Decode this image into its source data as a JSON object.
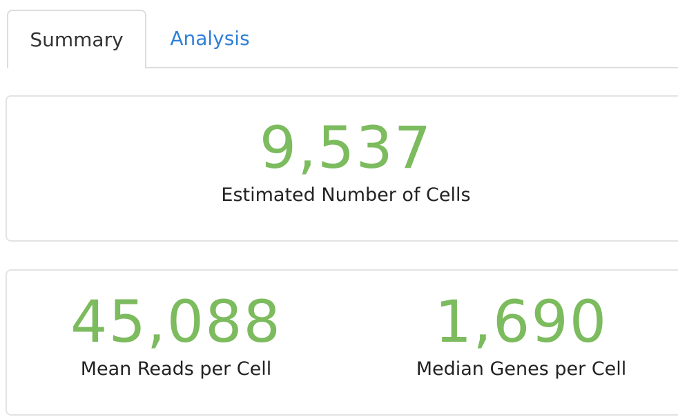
{
  "tabs": [
    {
      "label": "Summary",
      "active": true
    },
    {
      "label": "Analysis",
      "active": false
    }
  ],
  "cells_card": {
    "value": "9,537",
    "label": "Estimated Number of Cells"
  },
  "metrics_card": {
    "reads": {
      "value": "45,088",
      "label": "Mean Reads per Cell"
    },
    "genes": {
      "value": "1,690",
      "label": "Median Genes per Cell"
    }
  },
  "colors": {
    "value_green": "#7cbb5e",
    "link_blue": "#2e7fd9",
    "border_gray": "#dddddd"
  }
}
